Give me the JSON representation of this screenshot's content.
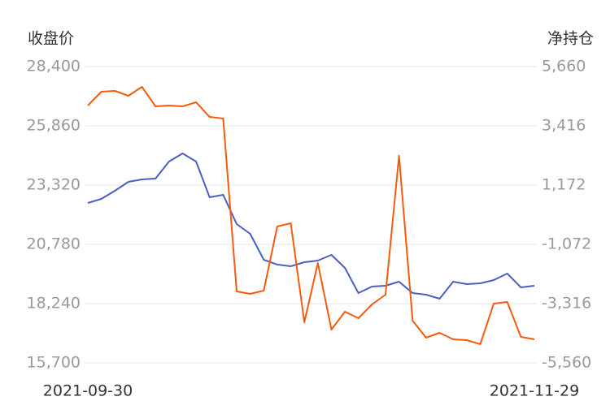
{
  "chart_data": {
    "type": "line",
    "y_label": "收盘价",
    "y2_label": "净持仓",
    "categories": [
      "2021-09-30",
      null,
      null,
      null,
      null,
      null,
      null,
      null,
      null,
      null,
      null,
      null,
      null,
      null,
      null,
      null,
      null,
      null,
      null,
      null,
      null,
      null,
      null,
      null,
      null,
      null,
      null,
      null,
      null,
      null,
      null,
      null,
      null,
      "2021-11-29"
    ],
    "ylim": [
      15700,
      28400
    ],
    "yticks": [
      {
        "value": 15700,
        "label": "15,700"
      },
      {
        "value": 18240,
        "label": "18,240"
      },
      {
        "value": 20780,
        "label": "20,780"
      },
      {
        "value": 23320,
        "label": "23,320"
      },
      {
        "value": 25860,
        "label": "25,860"
      },
      {
        "value": 28400,
        "label": "28,400"
      }
    ],
    "y2lim": [
      -5560,
      5660
    ],
    "y2ticks": [
      {
        "value": -5560,
        "label": "-5,560"
      },
      {
        "value": -3316,
        "label": "-3,316"
      },
      {
        "value": -1072,
        "label": "-1,072"
      },
      {
        "value": 1172,
        "label": "1,172"
      },
      {
        "value": 3416,
        "label": "3,416"
      },
      {
        "value": 5660,
        "label": "5,660"
      }
    ],
    "grid": true,
    "series": [
      {
        "color": "#4a5fc1",
        "values": [
          22555,
          22729,
          23077,
          23460,
          23564,
          23599,
          24330,
          24678,
          24330,
          22799,
          22903,
          21651,
          21234,
          20120,
          19912,
          19842,
          20016,
          20085,
          20329,
          19772,
          18694,
          18972,
          19007,
          19181,
          18694,
          18624,
          18450,
          19181,
          19076,
          19111,
          19250,
          19528,
          18937,
          19007
        ]
      },
      {
        "color": "#f55a0f",
        "axis": "y2",
        "values": [
          4184,
          4707,
          4738,
          4553,
          4892,
          4154,
          4184,
          4154,
          4307,
          3754,
          3693,
          -2855,
          -2947,
          -2824,
          -396,
          -273,
          -4024,
          -1779,
          -4300,
          -3624,
          -3870,
          -3347,
          -2978,
          2279,
          -3962,
          -4608,
          -4423,
          -4669,
          -4700,
          -4853,
          -3316,
          -3255,
          -4577,
          -4669
        ]
      }
    ]
  }
}
